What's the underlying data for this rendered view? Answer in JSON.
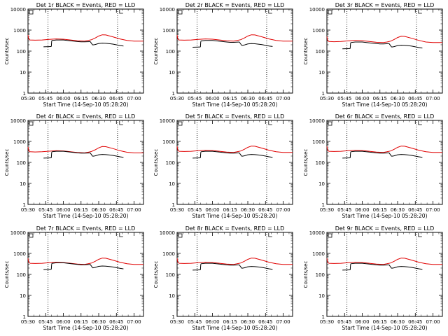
{
  "chart_data": [
    {
      "type": "line",
      "title": "Det 1r BLACK = Events, RED = LLD",
      "xlabel": "Start Time (14-Sep-10 05:28:20)",
      "ylabel": "Counts/sec",
      "yscale": "log",
      "ylim": [
        1,
        10000
      ],
      "xlim": [
        5.5,
        7.1333
      ],
      "xticks": [
        "05:30",
        "05:45",
        "06:00",
        "06:15",
        "06:30",
        "06:45",
        "07:00"
      ],
      "yticks": [
        "1",
        "10",
        "100",
        "1000",
        "10000"
      ],
      "vlines": [
        5.7833,
        6.7667
      ],
      "black_scale": 1.0,
      "red_scale": 1.0,
      "series": [
        {
          "name": "Events",
          "color": "#000000"
        },
        {
          "name": "LLD",
          "color": "#e00000"
        }
      ]
    },
    {
      "type": "line",
      "title": "Det 2r BLACK = Events, RED = LLD",
      "xlabel": "Start Time (14-Sep-10 05:28:20)",
      "ylabel": "Counts/sec",
      "yscale": "log",
      "ylim": [
        1,
        10000
      ],
      "xlim": [
        5.5,
        7.1333
      ],
      "xticks": [
        "05:30",
        "05:45",
        "06:00",
        "06:15",
        "06:30",
        "06:45",
        "07:00"
      ],
      "yticks": [
        "1",
        "10",
        "100",
        "1000",
        "10000"
      ],
      "vlines": [
        5.7833,
        6.7667
      ],
      "black_scale": 0.95,
      "red_scale": 1.0,
      "series": [
        {
          "name": "Events",
          "color": "#000000"
        },
        {
          "name": "LLD",
          "color": "#e00000"
        }
      ]
    },
    {
      "type": "line",
      "title": "Det 3r BLACK = Events, RED = LLD",
      "xlabel": "Start Time (14-Sep-10 05:28:20)",
      "ylabel": "Counts/sec",
      "yscale": "log",
      "ylim": [
        1,
        10000
      ],
      "xlim": [
        5.5,
        7.1333
      ],
      "xticks": [
        "05:30",
        "05:45",
        "06:00",
        "06:15",
        "06:30",
        "06:45",
        "07:00"
      ],
      "yticks": [
        "1",
        "10",
        "100",
        "1000",
        "10000"
      ],
      "vlines": [
        5.7833,
        6.7667
      ],
      "black_scale": 0.8,
      "red_scale": 0.85,
      "series": [
        {
          "name": "Events",
          "color": "#000000"
        },
        {
          "name": "LLD",
          "color": "#e00000"
        }
      ]
    },
    {
      "type": "line",
      "title": "Det 4r BLACK = Events, RED = LLD",
      "xlabel": "Start Time (14-Sep-10 05:28:20)",
      "ylabel": "Counts/sec",
      "yscale": "log",
      "ylim": [
        1,
        10000
      ],
      "xlim": [
        5.5,
        7.1333
      ],
      "xticks": [
        "05:30",
        "05:45",
        "06:00",
        "06:15",
        "06:30",
        "06:45",
        "07:00"
      ],
      "yticks": [
        "1",
        "10",
        "100",
        "1000",
        "10000"
      ],
      "vlines": [
        5.7833,
        6.7667
      ],
      "black_scale": 1.0,
      "red_scale": 0.95,
      "series": [
        {
          "name": "Events",
          "color": "#000000"
        },
        {
          "name": "LLD",
          "color": "#e00000"
        }
      ]
    },
    {
      "type": "line",
      "title": "Det 5r BLACK = Events, RED = LLD",
      "xlabel": "Start Time (14-Sep-10 05:28:20)",
      "ylabel": "Counts/sec",
      "yscale": "log",
      "ylim": [
        1,
        10000
      ],
      "xlim": [
        5.5,
        7.1333
      ],
      "xticks": [
        "05:30",
        "05:45",
        "06:00",
        "06:15",
        "06:30",
        "06:45",
        "07:00"
      ],
      "yticks": [
        "1",
        "10",
        "100",
        "1000",
        "10000"
      ],
      "vlines": [
        5.7833,
        6.7667
      ],
      "black_scale": 1.0,
      "red_scale": 1.0,
      "series": [
        {
          "name": "Events",
          "color": "#000000"
        },
        {
          "name": "LLD",
          "color": "#e00000"
        }
      ]
    },
    {
      "type": "line",
      "title": "Det 6r BLACK = Events, RED = LLD",
      "xlabel": "Start Time (14-Sep-10 05:28:20)",
      "ylabel": "Counts/sec",
      "yscale": "log",
      "ylim": [
        1,
        10000
      ],
      "xlim": [
        5.5,
        7.1333
      ],
      "xticks": [
        "05:30",
        "05:45",
        "06:00",
        "06:15",
        "06:30",
        "06:45",
        "07:00"
      ],
      "yticks": [
        "1",
        "10",
        "100",
        "1000",
        "10000"
      ],
      "vlines": [
        5.7833,
        6.7667
      ],
      "black_scale": 1.0,
      "red_scale": 1.0,
      "series": [
        {
          "name": "Events",
          "color": "#000000"
        },
        {
          "name": "LLD",
          "color": "#e00000"
        }
      ]
    },
    {
      "type": "line",
      "title": "Det 7r BLACK = Events, RED = LLD",
      "xlabel": "Start Time (14-Sep-10 05:28:20)",
      "ylabel": "Counts/sec",
      "yscale": "log",
      "ylim": [
        1,
        10000
      ],
      "xlim": [
        5.5,
        7.1333
      ],
      "xticks": [
        "05:30",
        "05:45",
        "06:00",
        "06:15",
        "06:30",
        "06:45",
        "07:00"
      ],
      "yticks": [
        "1",
        "10",
        "100",
        "1000",
        "10000"
      ],
      "vlines": [
        5.7833,
        6.7667
      ],
      "black_scale": 1.05,
      "red_scale": 1.0,
      "series": [
        {
          "name": "Events",
          "color": "#000000"
        },
        {
          "name": "LLD",
          "color": "#e00000"
        }
      ]
    },
    {
      "type": "line",
      "title": "Det 8r BLACK = Events, RED = LLD",
      "xlabel": "Start Time (14-Sep-10 05:28:20)",
      "ylabel": "Counts/sec",
      "yscale": "log",
      "ylim": [
        1,
        10000
      ],
      "xlim": [
        5.5,
        7.1333
      ],
      "xticks": [
        "05:30",
        "05:45",
        "06:00",
        "06:15",
        "06:30",
        "06:45",
        "07:00"
      ],
      "yticks": [
        "1",
        "10",
        "100",
        "1000",
        "10000"
      ],
      "vlines": [
        5.7833,
        6.7667
      ],
      "black_scale": 1.0,
      "red_scale": 1.0,
      "series": [
        {
          "name": "Events",
          "color": "#000000"
        },
        {
          "name": "LLD",
          "color": "#e00000"
        }
      ]
    },
    {
      "type": "line",
      "title": "Det 9r BLACK = Events, RED = LLD",
      "xlabel": "Start Time (14-Sep-10 05:28:20)",
      "ylabel": "Counts/sec",
      "yscale": "log",
      "ylim": [
        1,
        10000
      ],
      "xlim": [
        5.5,
        7.1333
      ],
      "xticks": [
        "05:30",
        "05:45",
        "06:00",
        "06:15",
        "06:30",
        "06:45",
        "07:00"
      ],
      "yticks": [
        "1",
        "10",
        "100",
        "1000",
        "10000"
      ],
      "vlines": [
        5.7833,
        6.7667
      ],
      "black_scale": 1.0,
      "red_scale": 1.0,
      "series": [
        {
          "name": "Events",
          "color": "#000000"
        },
        {
          "name": "LLD",
          "color": "#e00000"
        }
      ]
    }
  ],
  "curves": {
    "red": {
      "t": [
        5.5,
        5.51,
        5.53,
        5.6,
        5.7,
        5.8,
        5.9,
        6.0,
        6.1,
        6.2,
        6.3,
        6.35,
        6.4,
        6.45,
        6.5,
        6.55,
        6.6,
        6.7,
        6.8,
        6.9,
        7.0,
        7.1333
      ],
      "v": [
        580,
        380,
        340,
        330,
        340,
        360,
        380,
        370,
        340,
        310,
        300,
        320,
        350,
        420,
        520,
        600,
        590,
        480,
        380,
        320,
        300,
        300
      ]
    },
    "black_segments": [
      {
        "t": [
          5.72,
          5.83
        ],
        "v": [
          160,
          165
        ]
      },
      {
        "t": [
          5.835,
          5.84,
          5.9,
          6.0,
          6.1,
          6.2,
          6.25,
          6.3,
          6.38
        ],
        "v": [
          300,
          320,
          340,
          340,
          310,
          285,
          275,
          275,
          285
        ]
      },
      {
        "t": [
          6.415,
          6.45,
          6.5,
          6.55,
          6.6,
          6.65,
          6.7,
          6.8,
          6.85
        ],
        "v": [
          195,
          205,
          230,
          240,
          235,
          225,
          215,
          185,
          175
        ]
      }
    ]
  }
}
